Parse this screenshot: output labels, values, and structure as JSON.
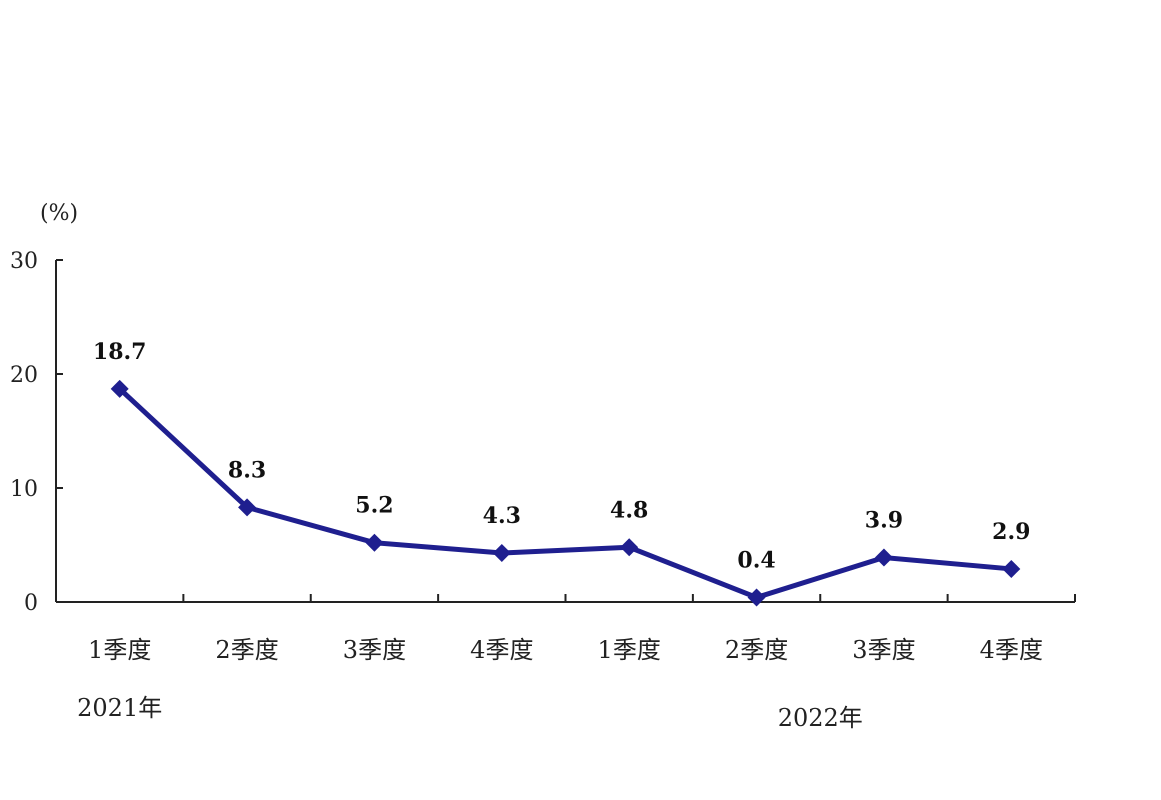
{
  "chart_data": {
    "type": "line",
    "ylabel": "(%)",
    "ylim": [
      0,
      30
    ],
    "yticks": [
      "0",
      "10",
      "20",
      "30"
    ],
    "categories": [
      "1季度",
      "2季度",
      "3季度",
      "4季度",
      "1季度",
      "2季度",
      "3季度",
      "4季度"
    ],
    "groups": [
      "2021年",
      "2022年"
    ],
    "series": [
      {
        "values": [
          18.7,
          8.3,
          5.2,
          4.3,
          4.8,
          0.4,
          3.9,
          2.9
        ],
        "color": "#1f1f8f"
      }
    ],
    "data_labels": [
      "18.7",
      "8.3",
      "5.2",
      "4.3",
      "4.8",
      "0.4",
      "3.9",
      "2.9"
    ],
    "grid": false,
    "legend": "none"
  }
}
